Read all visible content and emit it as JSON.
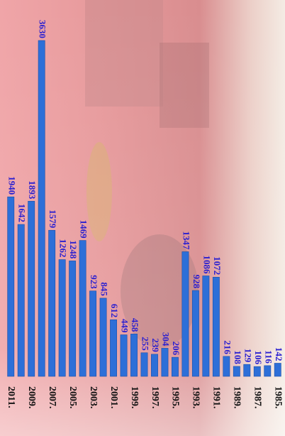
{
  "chart_data": {
    "type": "bar",
    "categories": [
      "2011.",
      null,
      "2009.",
      null,
      "2007.",
      null,
      "2005.",
      null,
      "2003.",
      null,
      "2001.",
      null,
      "1999.",
      null,
      "1997.",
      null,
      "1995.",
      null,
      "1993.",
      null,
      "1991.",
      null,
      "1989.",
      null,
      "1987.",
      null,
      "1985."
    ],
    "values": [
      1940,
      1642,
      1893,
      3630,
      1579,
      1262,
      1248,
      1469,
      923,
      845,
      612,
      449,
      458,
      255,
      239,
      304,
      206,
      1347,
      928,
      1086,
      1072,
      216,
      108,
      129,
      106,
      116,
      142
    ],
    "color": "#2d6fd8"
  }
}
